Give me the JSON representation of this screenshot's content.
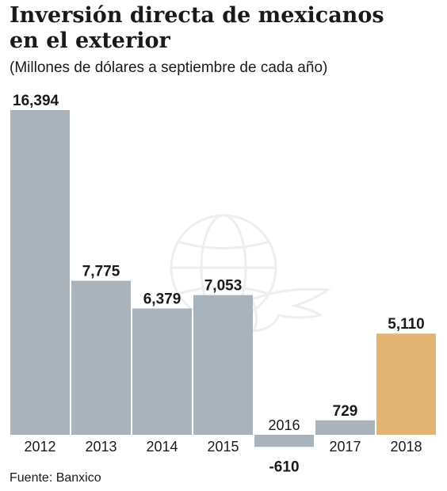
{
  "header": {
    "title_line1": "Inversión directa de mexicanos",
    "title_line2": "en el exterior",
    "subtitle": "(Millones de dólares a septiembre de cada año)"
  },
  "footer": {
    "source": "Fuente: Banxico"
  },
  "colors": {
    "bar_default": "#a9b3bc",
    "bar_highlight": "#e3b574",
    "text": "#1a1a1a",
    "watermark": "#eceff1"
  },
  "watermark": {
    "icon": "globe-eagle-logo-icon"
  },
  "chart_data": {
    "type": "bar",
    "title": "Inversión directa de mexicanos en el exterior",
    "subtitle": "(Millones de dólares a septiembre de cada año)",
    "categories": [
      "2012",
      "2013",
      "2014",
      "2015",
      "2016",
      "2017",
      "2018"
    ],
    "values": [
      16394,
      7775,
      6379,
      7053,
      -610,
      729,
      5110
    ],
    "value_labels": [
      "16,394",
      "7,775",
      "6,379",
      "7,053",
      "-610",
      "729",
      "5,110"
    ],
    "highlight_index": 6,
    "xlabel": "",
    "ylabel": "",
    "ylim": [
      -610,
      16394
    ],
    "grid": false,
    "legend": "none"
  }
}
